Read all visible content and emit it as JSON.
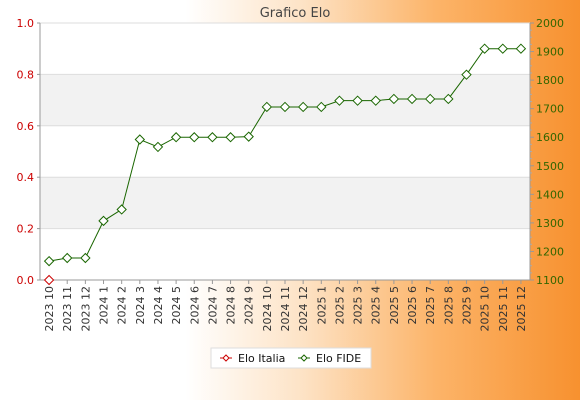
{
  "chart_data": {
    "type": "line",
    "title": "Grafico Elo",
    "x": [
      "2023 10",
      "2023 11",
      "2023 12",
      "2024 1",
      "2024 2",
      "2024 3",
      "2024 4",
      "2024 5",
      "2024 6",
      "2024 7",
      "2024 8",
      "2024 9",
      "2024 10",
      "2024 11",
      "2024 12",
      "2025 1",
      "2025 2",
      "2025 3",
      "2025 4",
      "2025 5",
      "2025 6",
      "2025 7",
      "2025 8",
      "2025 9",
      "2025 10",
      "2025 11",
      "2025 12"
    ],
    "series": [
      {
        "name": "Elo Italia",
        "axis": "left",
        "color": "#cc0000",
        "values": [
          0.0,
          null,
          null,
          null,
          null,
          null,
          null,
          null,
          null,
          null,
          null,
          null,
          null,
          null,
          null,
          null,
          null,
          null,
          null,
          null,
          null,
          null,
          null,
          null,
          null,
          null,
          null
        ]
      },
      {
        "name": "Elo FIDE",
        "axis": "right",
        "color": "#1a6600",
        "values": [
          1166,
          1177,
          1177,
          1307,
          1347,
          1592,
          1566,
          1600,
          1600,
          1600,
          1600,
          1602,
          1706,
          1706,
          1706,
          1706,
          1728,
          1728,
          1728,
          1734,
          1734,
          1734,
          1734,
          1819,
          1910,
          1910,
          1910
        ]
      }
    ],
    "y_left": {
      "lim": [
        0,
        1.0
      ],
      "ticks": [
        "0.0",
        "0.2",
        "0.4",
        "0.6",
        "0.8",
        "1.0"
      ]
    },
    "y_right": {
      "lim": [
        1100,
        2000
      ],
      "ticks": [
        "1100",
        "1200",
        "1300",
        "1400",
        "1500",
        "1600",
        "1700",
        "1800",
        "1900",
        "2000"
      ]
    },
    "grid": "horizontal alternating bands",
    "legend_position": "bottom-center"
  }
}
